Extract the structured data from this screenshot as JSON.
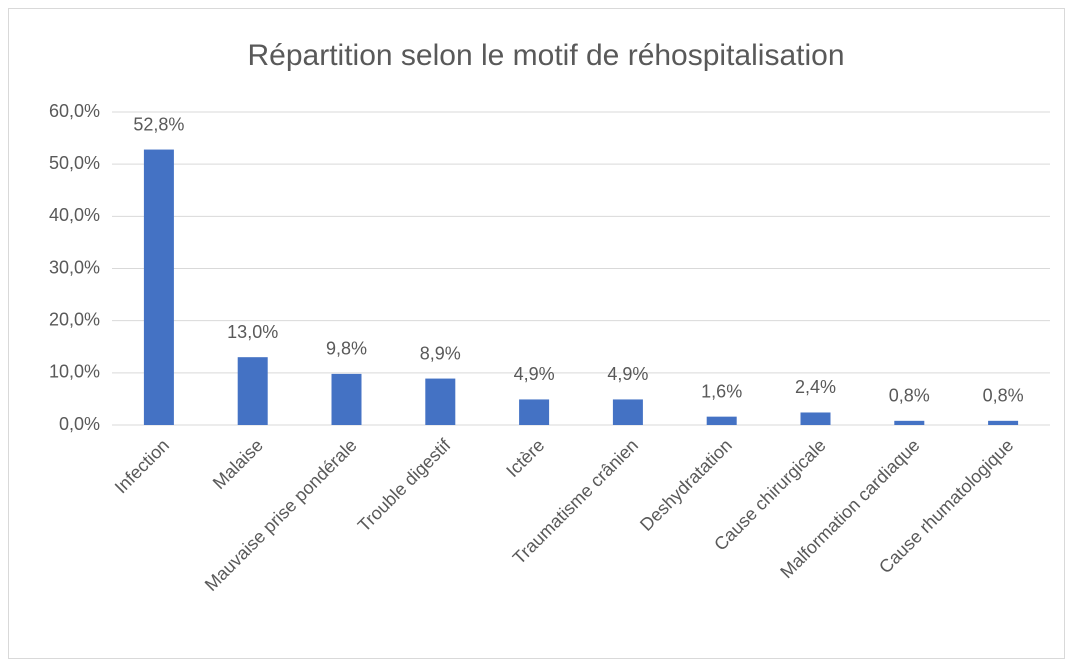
{
  "chart_data": {
    "type": "bar",
    "title": "Répartition selon le motif de réhospitalisation",
    "categories": [
      "Infection",
      "Malaise",
      "Mauvaise prise pondérale",
      "Trouble digestif",
      "Ictère",
      "Traumatisme crânien",
      "Deshydratation",
      "Cause chirurgicale",
      "Malformation cardiaque",
      "Cause rhumatologique"
    ],
    "values": [
      52.8,
      13.0,
      9.8,
      8.9,
      4.9,
      4.9,
      1.6,
      2.4,
      0.8,
      0.8
    ],
    "value_labels": [
      "52,8%",
      "13,0%",
      "9,8%",
      "8,9%",
      "4,9%",
      "4,9%",
      "1,6%",
      "2,4%",
      "0,8%",
      "0,8%"
    ],
    "color": "#4472c4",
    "ylim": [
      0,
      60
    ],
    "yticks": [
      {
        "value": 0,
        "label": "0,0%"
      },
      {
        "value": 10,
        "label": "10,0%"
      },
      {
        "value": 20,
        "label": "20,0%"
      },
      {
        "value": 30,
        "label": "30,0%"
      },
      {
        "value": 40,
        "label": "40,0%"
      },
      {
        "value": 50,
        "label": "50,0%"
      },
      {
        "value": 60,
        "label": "60,0%"
      }
    ],
    "grid": true
  }
}
